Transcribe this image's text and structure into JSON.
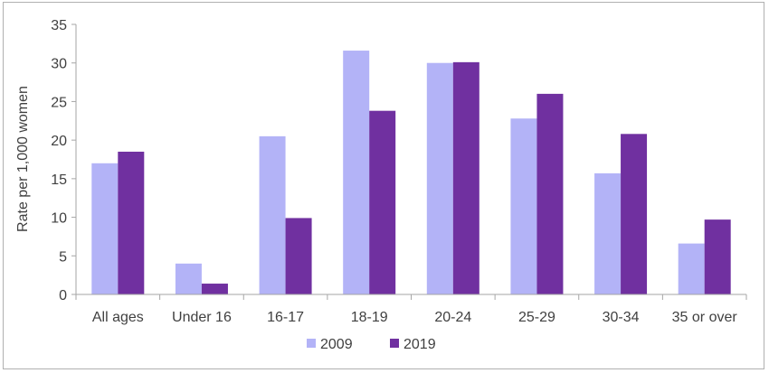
{
  "chart_data": {
    "type": "bar",
    "title": "",
    "xlabel": "",
    "ylabel": "Rate per 1,000 women",
    "ylim": [
      0,
      35
    ],
    "yticks": [
      0,
      5,
      10,
      15,
      20,
      25,
      30,
      35
    ],
    "grid": false,
    "legend": "bottom",
    "categories": [
      "All ages",
      "Under 16",
      "16-17",
      "18-19",
      "20-24",
      "25-29",
      "30-34",
      "35 or over"
    ],
    "series": [
      {
        "name": "2009",
        "color": "#b3b3f7",
        "values": [
          17.0,
          4.0,
          20.5,
          31.6,
          30.0,
          22.8,
          15.7,
          6.6
        ]
      },
      {
        "name": "2019",
        "color": "#7030a0",
        "values": [
          18.5,
          1.4,
          9.9,
          23.8,
          30.1,
          26.0,
          20.8,
          9.7
        ]
      }
    ]
  }
}
